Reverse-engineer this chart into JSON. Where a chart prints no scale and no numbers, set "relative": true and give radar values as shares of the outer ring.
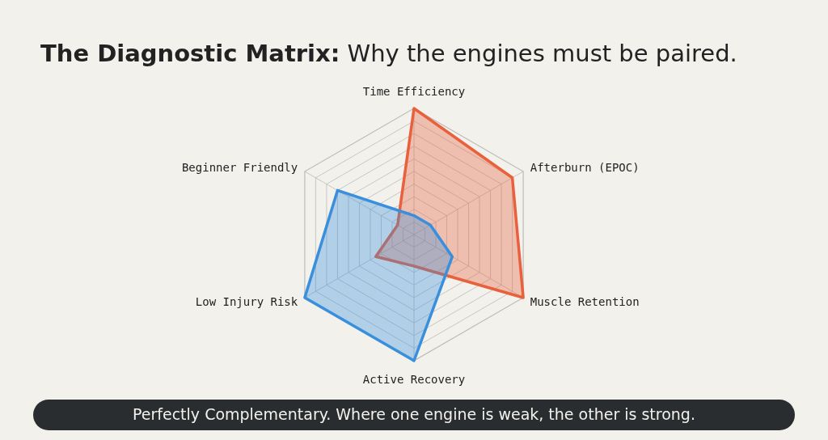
{
  "chart_data": {
    "type": "radar",
    "title": "The Diagnostic Matrix: Why the engines must be paired.",
    "relative": true,
    "grid": true,
    "categories": [
      "Time Efficiency",
      "Afterburn (EPOC)",
      "Muscle Retention",
      "Active Recovery",
      "Low Injury Risk",
      "Beginner Friendly"
    ],
    "series": [
      {
        "color": "#e8603c",
        "values": [
          1,
          0.9,
          1,
          0.25,
          0.35,
          0.15
        ]
      },
      {
        "color": "#3a8fdc",
        "values": [
          0.15,
          0.15,
          0.35,
          1,
          1,
          0.7
        ]
      }
    ],
    "annotations": [
      "Perfectly Complementary. Where one engine is weak, the other is strong."
    ]
  }
}
